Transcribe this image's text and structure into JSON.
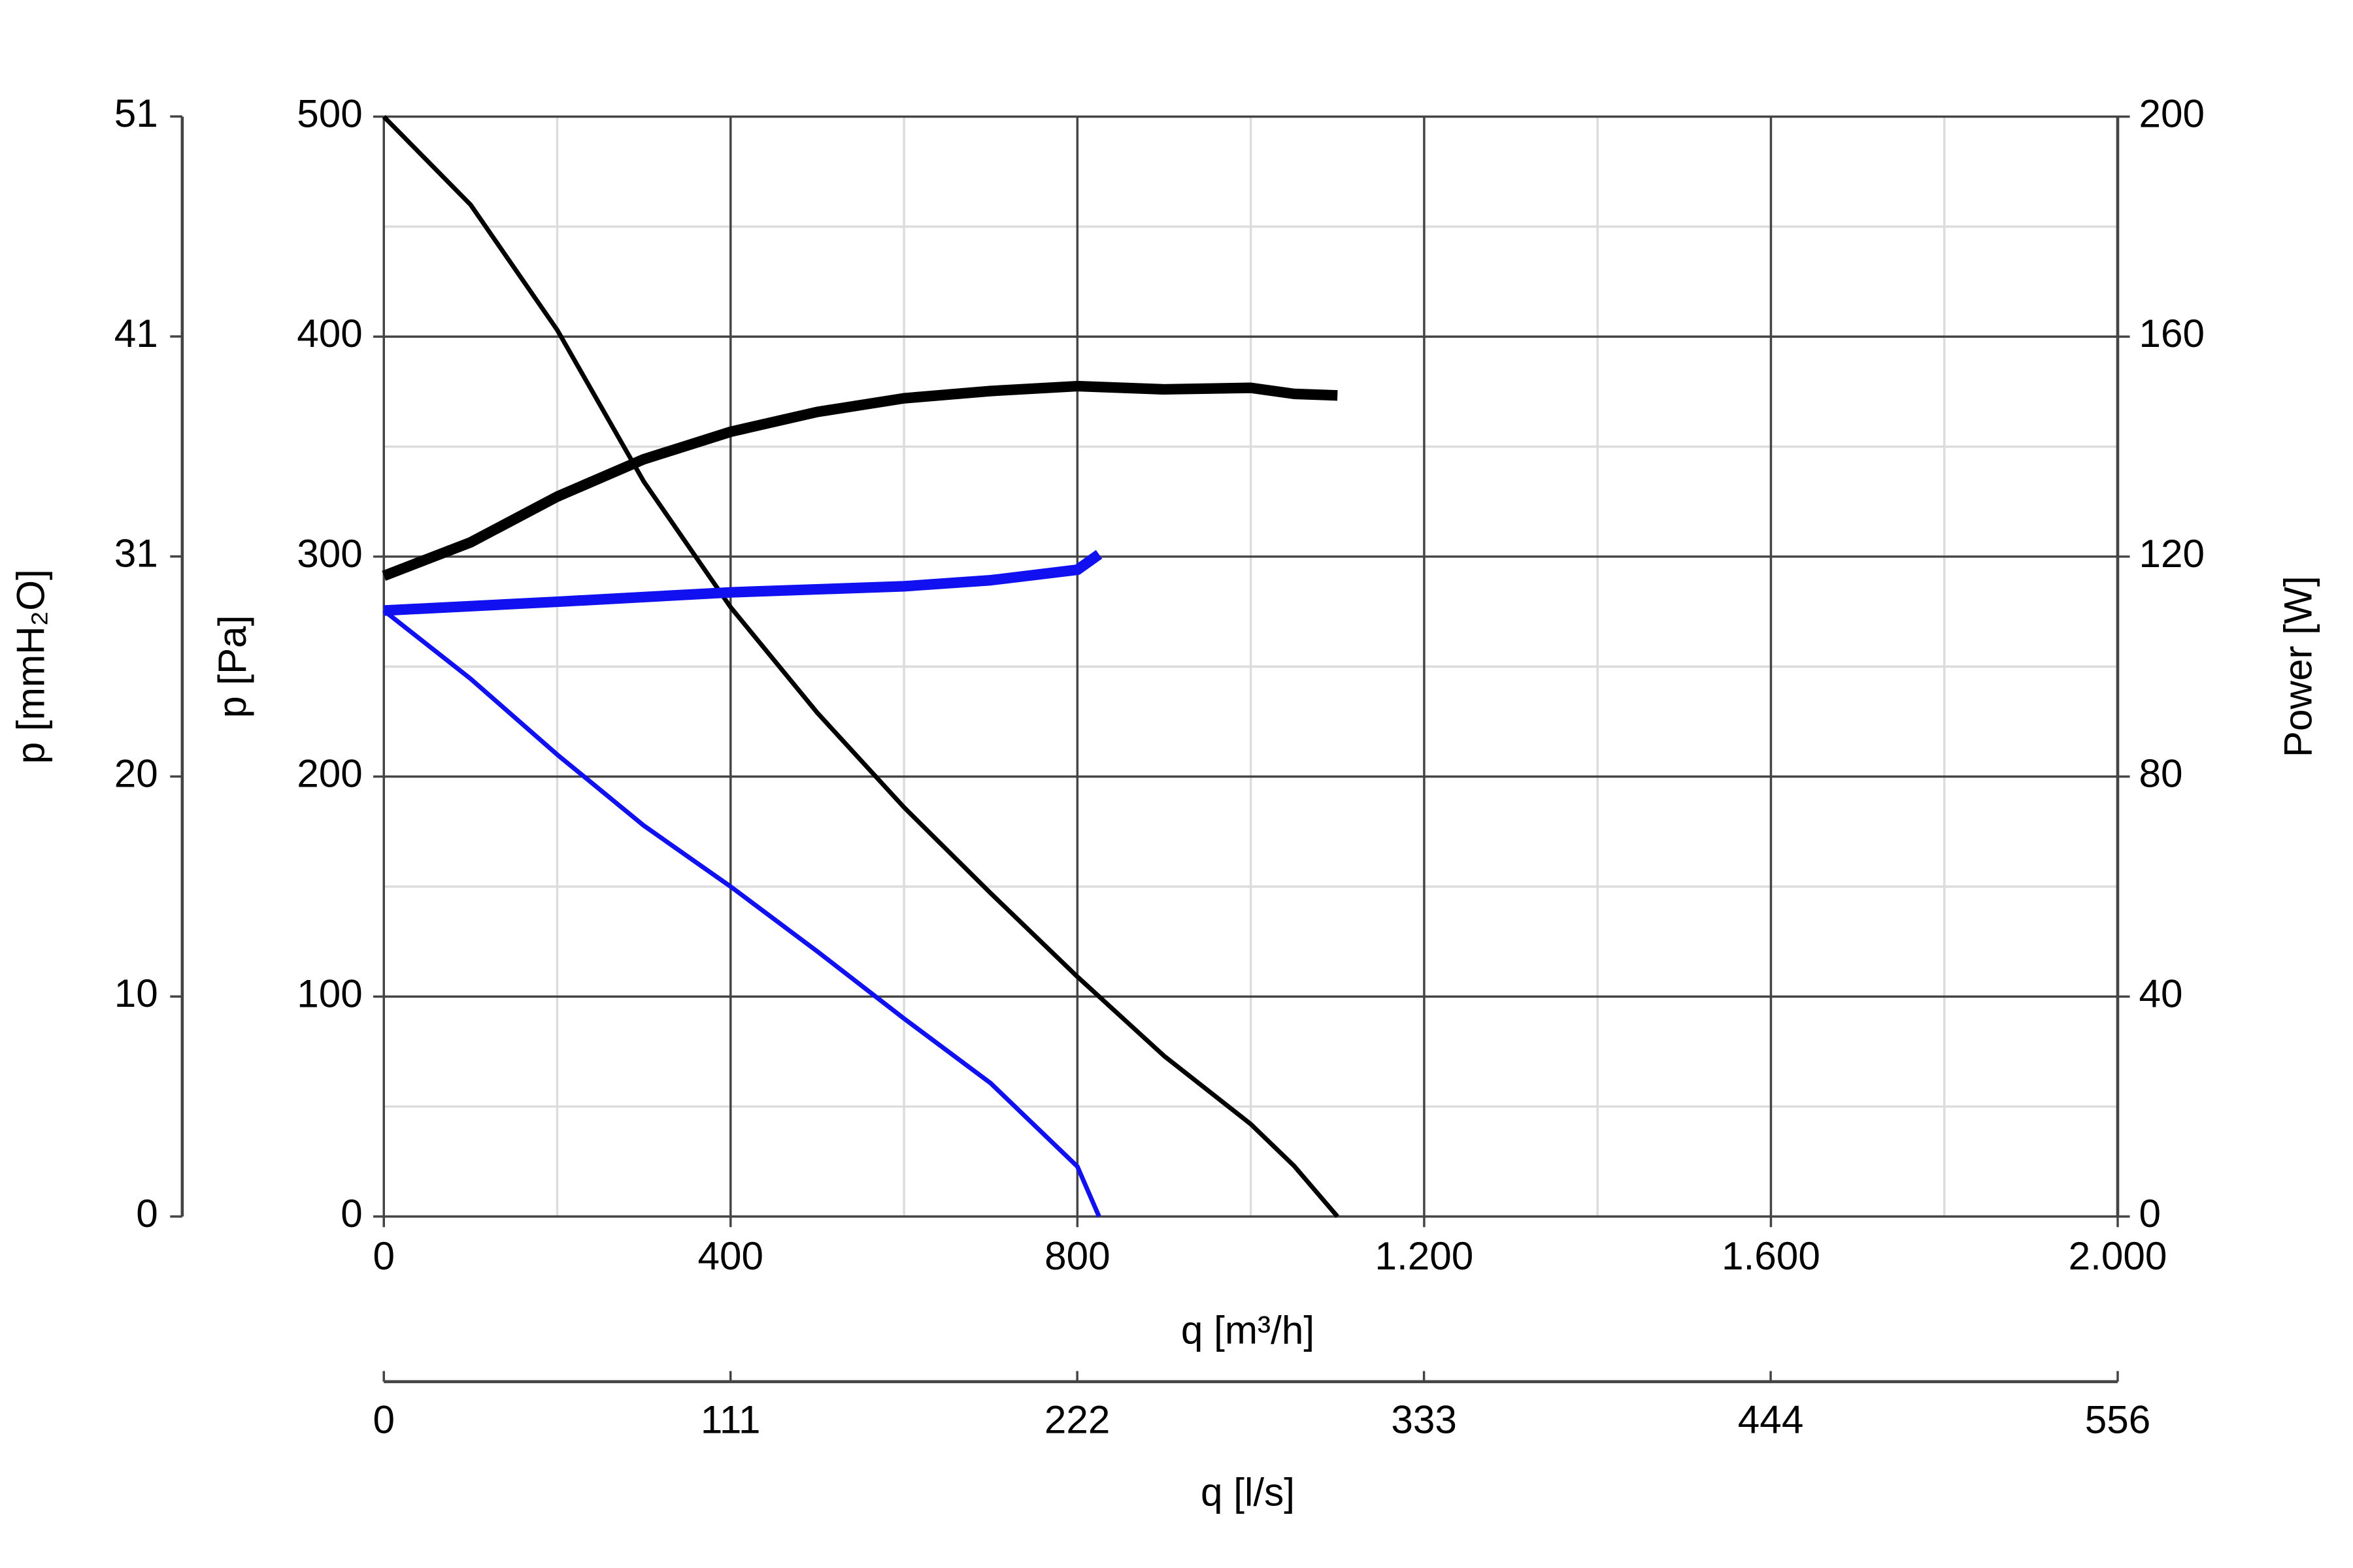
{
  "chart_data": {
    "type": "line",
    "xlabel": "q [m³/h]",
    "xlim": [
      0,
      2000
    ],
    "xticks": [
      0,
      400,
      800,
      {
        "value": 1200,
        "label": "1.200"
      },
      {
        "value": 1600,
        "label": "1.600"
      },
      {
        "value": 2000,
        "label": "2.000"
      }
    ],
    "x_minor_ticks": [
      200,
      600,
      1000,
      1400,
      1800
    ],
    "x2label": "q [l/s]",
    "x2lim": [
      0,
      555.6
    ],
    "x2ticks": [
      0,
      {
        "value": 111.1,
        "label": "111"
      },
      {
        "value": 222.2,
        "label": "222"
      },
      {
        "value": 333.3,
        "label": "333"
      },
      {
        "value": 444.4,
        "label": "444"
      },
      {
        "value": 555.6,
        "label": "556"
      }
    ],
    "ylabel": "p [Pa]",
    "ylim": [
      0,
      500
    ],
    "yticks": [
      0,
      100,
      200,
      300,
      400,
      500
    ],
    "y_minor_ticks": [
      50,
      150,
      250,
      350,
      450
    ],
    "y3label": "p [mmH₂O]",
    "y3lim": [
      0,
      50.99
    ],
    "y3ticks": [
      0,
      {
        "value": 10.2,
        "label": "10"
      },
      {
        "value": 20.4,
        "label": "20"
      },
      {
        "value": 30.6,
        "label": "31"
      },
      {
        "value": 40.8,
        "label": "41"
      },
      {
        "value": 51.0,
        "label": "51"
      }
    ],
    "y2label": "Power [W]",
    "y2lim": [
      0,
      200
    ],
    "y2ticks": [
      0,
      40,
      80,
      120,
      160,
      200
    ],
    "grid": true,
    "series": [
      {
        "color": "#000000",
        "line_width": 3,
        "x": [
          0,
          100,
          200,
          300,
          400,
          500,
          600,
          700,
          800,
          900,
          1000,
          1050,
          1100
        ],
        "values": [
          500,
          460,
          403,
          334,
          277,
          229,
          186,
          147,
          109,
          73,
          42,
          23,
          0
        ]
      },
      {
        "color": "#000000",
        "line_width": 7,
        "axis": "y2",
        "x": [
          0,
          100,
          200,
          300,
          400,
          500,
          600,
          700,
          800,
          900,
          1000,
          1050,
          1100
        ],
        "values": [
          116.5,
          122.6,
          130.9,
          137.7,
          142.7,
          146.3,
          148.8,
          150.1,
          151,
          150.4,
          150.7,
          149.6,
          149.3
        ]
      },
      {
        "color": "#1010f0",
        "line_width": 3,
        "x": [
          0,
          100,
          200,
          300,
          400,
          500,
          600,
          700,
          800,
          825
        ],
        "values": [
          275.5,
          244.5,
          210,
          177.7,
          150,
          120.5,
          90,
          60.6,
          22.7,
          0
        ]
      },
      {
        "color": "#1010f0",
        "line_width": 7,
        "axis": "y2",
        "x": [
          0,
          200,
          400,
          600,
          700,
          800,
          825
        ],
        "values": [
          110.2,
          111.8,
          113.5,
          114.6,
          115.7,
          117.6,
          120.4
        ]
      }
    ]
  }
}
